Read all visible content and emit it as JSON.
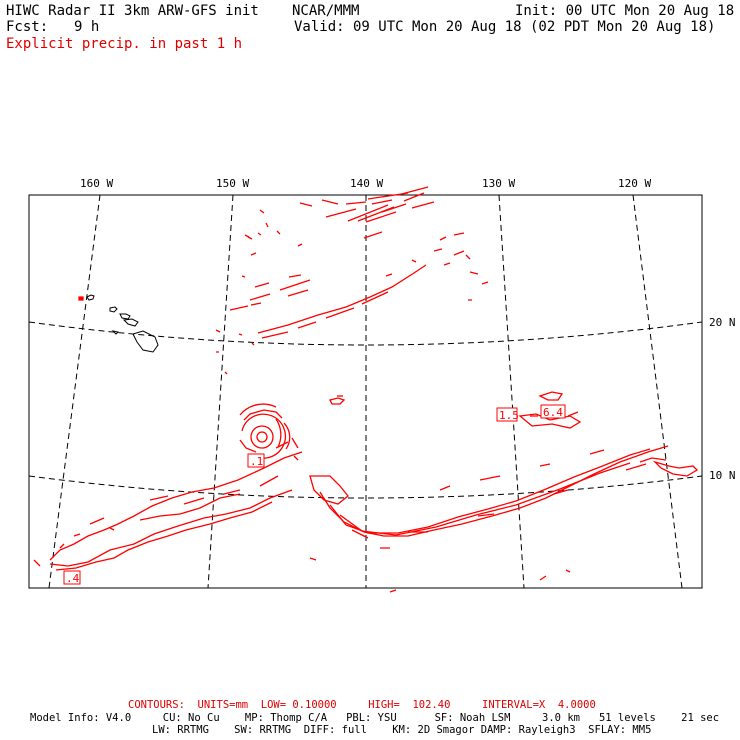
{
  "header": {
    "title": "HIWC Radar II 3km ARW-GFS init",
    "org": "NCAR/MMM",
    "init": "Init: 00 UTC Mon 20 Aug 18",
    "fcst_label": "Fcst:",
    "fcst_value": "9 h",
    "valid": "Valid: 09 UTC Mon 20 Aug 18 (02 PDT Mon 20 Aug 18)",
    "field": "Explicit precip. in past 1 h"
  },
  "map": {
    "lon_labels": [
      "160 W",
      "150 W",
      "140 W",
      "130 W",
      "120 W"
    ],
    "lat_labels": [
      "20 N",
      "10 N"
    ],
    "precip_color": "#ff0000",
    "coast_color": "#000000",
    "max_labels": [
      "1.5",
      "6.4",
      ".1",
      ".4"
    ]
  },
  "footer": {
    "contours": "CONTOURS:  UNITS=mm  LOW= 0.10000     HIGH=  102.40     INTERVAL=X  4.0000",
    "line1": "Model Info: V4.0     CU: No Cu    MP: Thomp C/A   PBL: YSU      SF: Noah LSM     3.0 km   51 levels    21 sec",
    "line2": "LW: RRTMG    SW: RRTMG  DIFF: full    KM: 2D Smagor DAMP: Rayleigh3  SFLAY: MM5"
  }
}
